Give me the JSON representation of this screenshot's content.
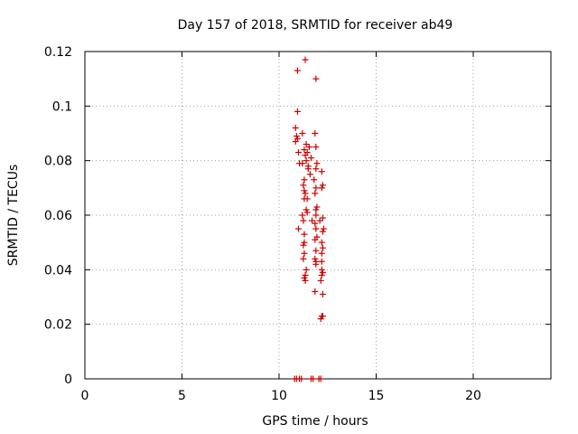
{
  "chart_data": {
    "type": "scatter",
    "title": "Day 157 of 2018, SRMTID for receiver ab49",
    "xlabel": "GPS time / hours",
    "ylabel": "SRMTID / TECUs",
    "xlim": [
      0,
      24
    ],
    "ylim": [
      0,
      0.12
    ],
    "xticks": [
      0,
      5,
      10,
      15,
      20
    ],
    "xtick_labels": [
      "0",
      "5",
      "10",
      "15",
      "20"
    ],
    "yticks": [
      0,
      0.02,
      0.04,
      0.06,
      0.08,
      0.1,
      0.12
    ],
    "ytick_labels": [
      "0",
      "0.02",
      "0.04",
      "0.06",
      "0.08",
      "0.1",
      "0.12"
    ],
    "grid": true,
    "marker": "+",
    "color": "#cc0000",
    "series": [
      {
        "name": "SRMTID",
        "points": [
          [
            11.35,
            0.117
          ],
          [
            10.95,
            0.113
          ],
          [
            11.9,
            0.11
          ],
          [
            10.95,
            0.098
          ],
          [
            10.85,
            0.092
          ],
          [
            10.9,
            0.089
          ],
          [
            10.85,
            0.087
          ],
          [
            10.95,
            0.088
          ],
          [
            11.2,
            0.09
          ],
          [
            11.85,
            0.09
          ],
          [
            11.4,
            0.086
          ],
          [
            11.55,
            0.085
          ],
          [
            11.3,
            0.084
          ],
          [
            11.9,
            0.085
          ],
          [
            11.35,
            0.082
          ],
          [
            11.45,
            0.083
          ],
          [
            11.0,
            0.083
          ],
          [
            11.65,
            0.081
          ],
          [
            11.4,
            0.08
          ],
          [
            11.2,
            0.079
          ],
          [
            11.5,
            0.078
          ],
          [
            11.95,
            0.079
          ],
          [
            11.9,
            0.077
          ],
          [
            12.2,
            0.076
          ],
          [
            11.5,
            0.077
          ],
          [
            11.05,
            0.079
          ],
          [
            11.6,
            0.075
          ],
          [
            11.3,
            0.073
          ],
          [
            11.8,
            0.073
          ],
          [
            11.25,
            0.071
          ],
          [
            12.25,
            0.071
          ],
          [
            11.9,
            0.07
          ],
          [
            11.3,
            0.069
          ],
          [
            12.2,
            0.07
          ],
          [
            11.35,
            0.068
          ],
          [
            11.85,
            0.068
          ],
          [
            11.3,
            0.066
          ],
          [
            11.45,
            0.066
          ],
          [
            11.95,
            0.063
          ],
          [
            11.9,
            0.062
          ],
          [
            11.4,
            0.062
          ],
          [
            11.45,
            0.061
          ],
          [
            11.2,
            0.06
          ],
          [
            11.9,
            0.06
          ],
          [
            12.25,
            0.059
          ],
          [
            11.25,
            0.058
          ],
          [
            11.7,
            0.058
          ],
          [
            11.85,
            0.057
          ],
          [
            12.1,
            0.058
          ],
          [
            11.9,
            0.055
          ],
          [
            11.0,
            0.055
          ],
          [
            12.3,
            0.055
          ],
          [
            11.3,
            0.053
          ],
          [
            12.25,
            0.054
          ],
          [
            11.85,
            0.051
          ],
          [
            11.95,
            0.052
          ],
          [
            11.3,
            0.05
          ],
          [
            12.2,
            0.05
          ],
          [
            11.25,
            0.049
          ],
          [
            12.25,
            0.048
          ],
          [
            11.9,
            0.047
          ],
          [
            12.2,
            0.046
          ],
          [
            11.3,
            0.046
          ],
          [
            11.85,
            0.044
          ],
          [
            11.25,
            0.044
          ],
          [
            11.9,
            0.043
          ],
          [
            12.2,
            0.043
          ],
          [
            11.9,
            0.042
          ],
          [
            12.2,
            0.04
          ],
          [
            11.4,
            0.04
          ],
          [
            12.25,
            0.039
          ],
          [
            12.2,
            0.038
          ],
          [
            11.35,
            0.038
          ],
          [
            11.3,
            0.037
          ],
          [
            12.15,
            0.036
          ],
          [
            11.35,
            0.036
          ],
          [
            11.85,
            0.032
          ],
          [
            12.25,
            0.031
          ],
          [
            12.2,
            0.023
          ],
          [
            12.25,
            0.023
          ],
          [
            12.15,
            0.022
          ],
          [
            10.8,
            0.0
          ],
          [
            10.9,
            0.0
          ],
          [
            11.05,
            0.0
          ],
          [
            11.15,
            0.0
          ],
          [
            11.65,
            0.0
          ],
          [
            11.75,
            0.0
          ],
          [
            12.05,
            0.0
          ],
          [
            12.15,
            0.0
          ]
        ]
      }
    ]
  }
}
